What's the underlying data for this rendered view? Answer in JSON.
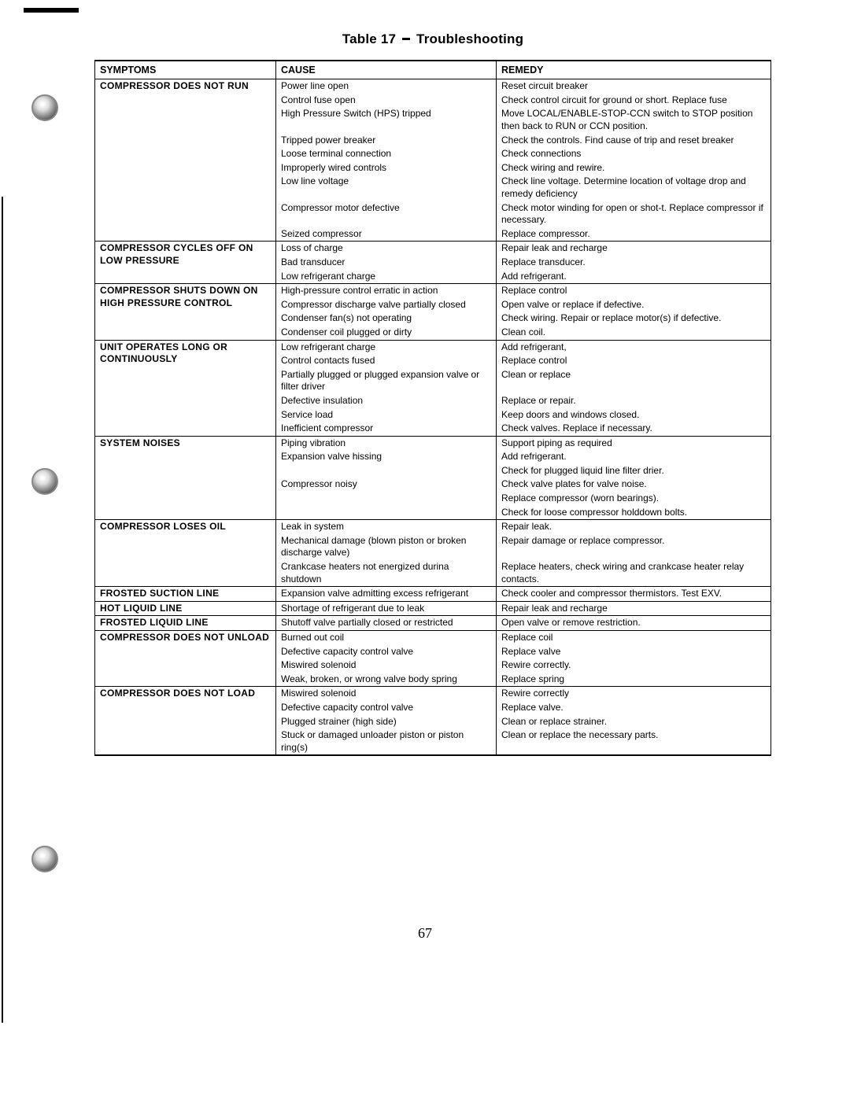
{
  "title_prefix": "Table 17",
  "title_suffix": "Troubleshooting",
  "page_number": "67",
  "headers": [
    "SYMPTOMS",
    "CAUSE",
    "REMEDY"
  ],
  "groups": [
    {
      "symptom": "COMPRESSOR DOES NOT RUN",
      "rows": [
        {
          "cause": "Power line open",
          "remedy": "Reset circuit breaker"
        },
        {
          "cause": "Control fuse open",
          "remedy": "Check control circuit for ground or short. Replace fuse"
        },
        {
          "cause": "High Pressure Switch (HPS) tripped",
          "remedy": "Move LOCAL/ENABLE-STOP-CCN switch to STOP position then back to RUN or CCN position."
        },
        {
          "cause": "Tripped power breaker",
          "remedy": "Check the controls. Find cause of trip and reset breaker"
        },
        {
          "cause": "Loose terminal connection",
          "remedy": "Check connections"
        },
        {
          "cause": "Improperly wired controls",
          "remedy": "Check wiring and rewire."
        },
        {
          "cause": "Low line voltage",
          "remedy": "Check line voltage. Determine location of voltage drop and remedy deficiency"
        },
        {
          "cause": "Compressor motor defective",
          "remedy": "Check motor winding for open or shot-t. Replace compressor if necessary."
        },
        {
          "cause": "Seized compressor",
          "remedy": "Replace compressor."
        }
      ]
    },
    {
      "symptom": "COMPRESSOR CYCLES OFF ON LOW PRESSURE",
      "rows": [
        {
          "cause": "Loss of charge",
          "remedy": "Repair leak and recharge"
        },
        {
          "cause": "Bad transducer",
          "remedy": "Replace transducer."
        },
        {
          "cause": "Low refrigerant charge",
          "remedy": "Add refrigerant."
        }
      ]
    },
    {
      "symptom": "COMPRESSOR SHUTS DOWN ON HIGH PRESSURE CONTROL",
      "rows": [
        {
          "cause": "High-pressure control erratic in action",
          "remedy": "Replace control"
        },
        {
          "cause": "Compressor discharge valve partially closed",
          "remedy": "Open valve or replace if defective."
        },
        {
          "cause": "Condenser fan(s) not operating",
          "remedy": "Check wiring. Repair or replace motor(s) if defective."
        },
        {
          "cause": "Condenser coil plugged or dirty",
          "remedy": "Clean coil."
        }
      ]
    },
    {
      "symptom": "UNIT OPERATES LONG OR CONTINUOUSLY",
      "rows": [
        {
          "cause": "Low refrigerant charge",
          "remedy": "Add refrigerant,"
        },
        {
          "cause": "Control contacts fused",
          "remedy": "Replace control"
        },
        {
          "cause": "Partially plugged or plugged expansion valve or filter driver",
          "remedy": "Clean or replace"
        },
        {
          "cause": "Defective insulation",
          "remedy": "Replace or repair."
        },
        {
          "cause": "Service load",
          "remedy": "Keep doors and windows closed."
        },
        {
          "cause": "Inefficient compressor",
          "remedy": "Check valves. Replace if necessary."
        }
      ]
    },
    {
      "symptom": "SYSTEM NOISES",
      "rows": [
        {
          "cause": "Piping vibration",
          "remedy": "Support piping as required"
        },
        {
          "cause": "Expansion valve hissing",
          "remedy": "Add refrigerant."
        },
        {
          "cause": "",
          "remedy": "Check for plugged liquid line filter drier."
        },
        {
          "cause": "Compressor noisy",
          "remedy": "Check valve plates for valve noise."
        },
        {
          "cause": "",
          "remedy": "Replace compressor (worn bearings)."
        },
        {
          "cause": "",
          "remedy": "Check for loose compressor holddown bolts."
        }
      ]
    },
    {
      "symptom": "COMPRESSOR LOSES OIL",
      "rows": [
        {
          "cause": "Leak in system",
          "remedy": "Repair leak."
        },
        {
          "cause": "Mechanical damage (blown piston or broken discharge valve)",
          "remedy": "Repair damage or replace compressor."
        },
        {
          "cause": "Crankcase heaters not energized durina shutdown",
          "remedy": "Replace heaters, check wiring and crankcase heater relay contacts."
        }
      ]
    },
    {
      "symptom": "FROSTED SUCTION LINE",
      "rows": [
        {
          "cause": "Expansion valve admitting excess refrigerant",
          "remedy": "Check cooler and compressor thermistors. Test EXV."
        }
      ]
    },
    {
      "symptom": "HOT LIQUID LINE",
      "rows": [
        {
          "cause": "Shortage of refrigerant due to leak",
          "remedy": "Repair leak and recharge"
        }
      ]
    },
    {
      "symptom": "FROSTED LIQUID LINE",
      "rows": [
        {
          "cause": "Shutoff valve partially closed or restricted",
          "remedy": "Open valve or remove restriction."
        }
      ]
    },
    {
      "symptom": "COMPRESSOR DOES NOT UNLOAD",
      "rows": [
        {
          "cause": "Burned out coil",
          "remedy": "Replace coil"
        },
        {
          "cause": "Defective capacity control valve",
          "remedy": "Replace valve"
        },
        {
          "cause": "Miswired solenoid",
          "remedy": "Rewire correctly."
        },
        {
          "cause": "Weak, broken, or wrong valve body spring",
          "remedy": "Replace spring"
        }
      ]
    },
    {
      "symptom": "COMPRESSOR DOES NOT LOAD",
      "rows": [
        {
          "cause": "Miswired solenoid",
          "remedy": "Rewire correctly"
        },
        {
          "cause": "Defective capacity control valve",
          "remedy": "Replace valve."
        },
        {
          "cause": "Plugged strainer (high side)",
          "remedy": "Clean or replace strainer."
        },
        {
          "cause": "Stuck or damaged unloader piston or piston ring(s)",
          "remedy": "Clean or replace the necessary parts."
        }
      ]
    }
  ]
}
